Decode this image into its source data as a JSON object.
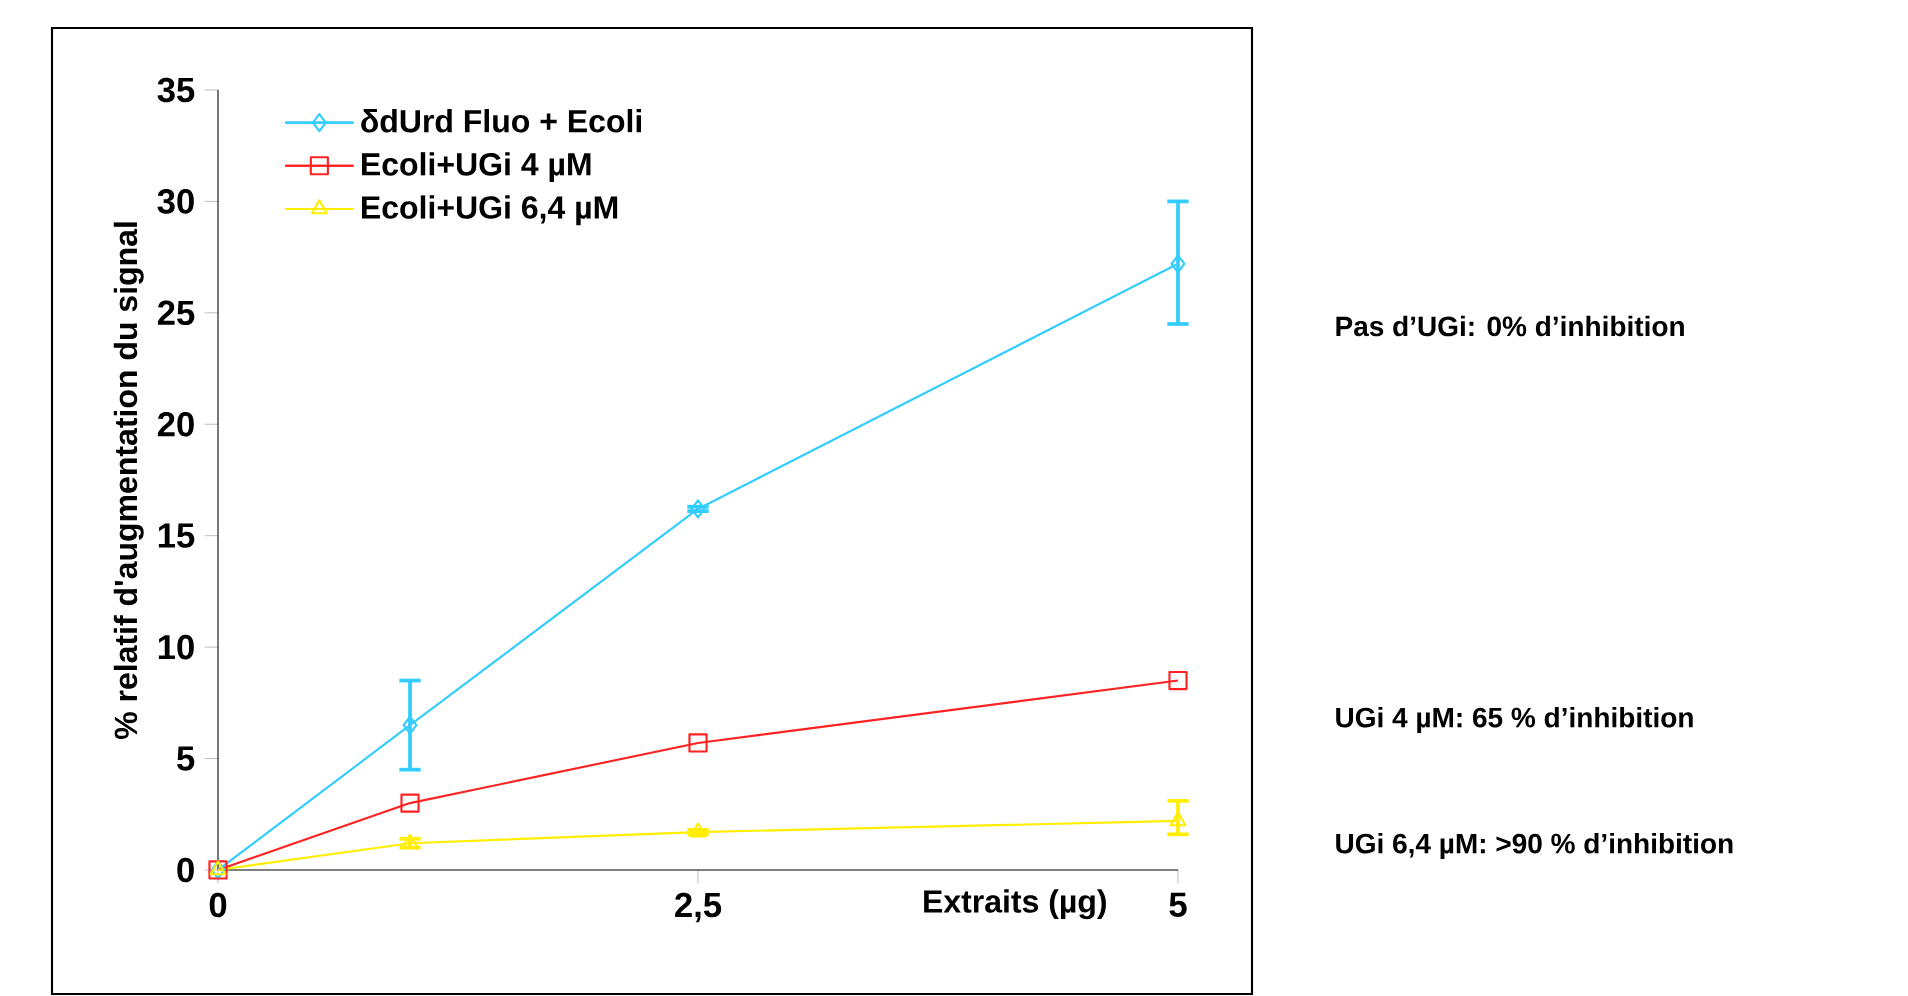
{
  "chart_data": {
    "type": "line",
    "xlabel": "Extraits (µg)",
    "ylabel": "% relatif d'augmentation du signal",
    "xlim": [
      0,
      5
    ],
    "xticks": [
      0,
      {
        "value": 2.5,
        "label": "2,5"
      },
      5
    ],
    "ylim": [
      0,
      35
    ],
    "yticks": [
      0,
      5,
      10,
      15,
      20,
      25,
      30,
      35
    ],
    "grid": false,
    "legend": "top left",
    "series": [
      {
        "name": "δdUrd Fluo + Ecoli",
        "color": "#33ccff",
        "marker": "diamond",
        "x": [
          0,
          1,
          2.5,
          5
        ],
        "values": [
          0,
          6.5,
          16.2,
          27.2
        ],
        "errors": [
          null,
          2,
          0.1,
          [
            24.5,
            30
          ]
        ]
      },
      {
        "name": "Ecoli+UGi 4 µM",
        "color": "#ff2222",
        "marker": "square",
        "x": [
          0,
          1,
          2.5,
          5
        ],
        "values": [
          0,
          3,
          5.7,
          8.5
        ]
      },
      {
        "name": "Ecoli+UGi 6,4 µM",
        "color": "#ffee00",
        "marker": "triangle",
        "x": [
          0,
          1,
          2.5,
          5
        ],
        "values": [
          0,
          1.2,
          1.7,
          2.2
        ],
        "errors": [
          null,
          0.2,
          0.1,
          [
            1.6,
            3.1
          ]
        ]
      }
    ],
    "annotations": [
      "Pas d’UGi: 0% d’inhibition",
      "UGi 4 µM: 65 % d’inhibition",
      "UGi 6,4 µM: >90 % d’inhibition"
    ]
  }
}
